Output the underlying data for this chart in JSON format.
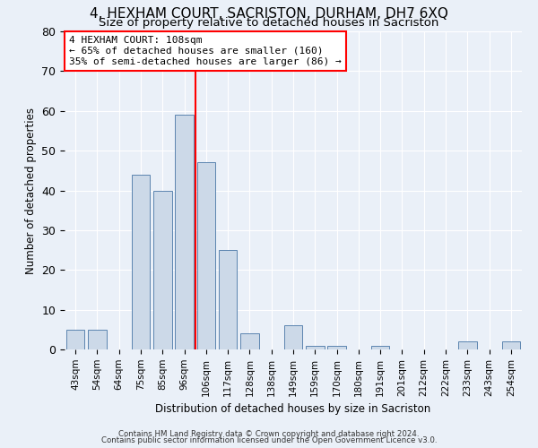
{
  "title": "4, HEXHAM COURT, SACRISTON, DURHAM, DH7 6XQ",
  "subtitle": "Size of property relative to detached houses in Sacriston",
  "xlabel": "Distribution of detached houses by size in Sacriston",
  "ylabel": "Number of detached properties",
  "bar_labels": [
    "43sqm",
    "54sqm",
    "64sqm",
    "75sqm",
    "85sqm",
    "96sqm",
    "106sqm",
    "117sqm",
    "128sqm",
    "138sqm",
    "149sqm",
    "159sqm",
    "170sqm",
    "180sqm",
    "191sqm",
    "201sqm",
    "212sqm",
    "222sqm",
    "233sqm",
    "243sqm",
    "254sqm"
  ],
  "bar_values": [
    5,
    5,
    0,
    44,
    40,
    59,
    47,
    25,
    4,
    0,
    6,
    1,
    1,
    0,
    1,
    0,
    0,
    0,
    2,
    0,
    2
  ],
  "bar_color": "#ccd9e8",
  "bar_edge_color": "#5c85b0",
  "red_line_index": 6,
  "annotation_text": "4 HEXHAM COURT: 108sqm\n← 65% of detached houses are smaller (160)\n35% of semi-detached houses are larger (86) →",
  "annotation_box_color": "white",
  "annotation_box_edge_color": "red",
  "ylim": [
    0,
    80
  ],
  "yticks": [
    0,
    10,
    20,
    30,
    40,
    50,
    60,
    70,
    80
  ],
  "footnote1": "Contains HM Land Registry data © Crown copyright and database right 2024.",
  "footnote2": "Contains public sector information licensed under the Open Government Licence v3.0.",
  "background_color": "#eaf0f8",
  "plot_background_color": "#eaf0f8",
  "title_fontsize": 11,
  "subtitle_fontsize": 9.5,
  "grid_color": "#ffffff",
  "tick_label_fontsize": 7.5
}
